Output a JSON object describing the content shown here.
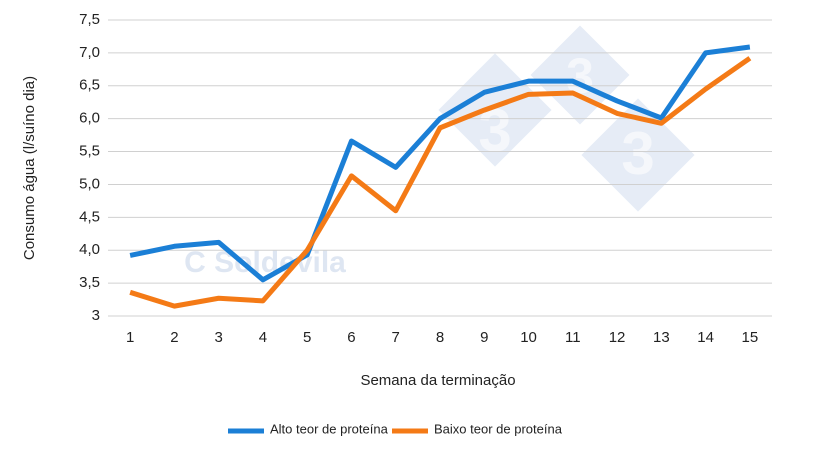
{
  "chart_data": {
    "type": "line",
    "x_label": "Semana da terminação",
    "y_label": "Consumo água (l/suíno dia)",
    "watermark": "C Soldevila",
    "logo_text": "3",
    "categories": [
      "1",
      "2",
      "3",
      "4",
      "5",
      "6",
      "7",
      "8",
      "9",
      "10",
      "11",
      "12",
      "13",
      "14",
      "15"
    ],
    "series": [
      {
        "name": "Alto teor de proteína",
        "color": "#1b7fd6",
        "values": [
          3.92,
          4.06,
          4.12,
          3.55,
          3.93,
          5.66,
          5.26,
          6.0,
          6.4,
          6.57,
          6.57,
          6.27,
          6.01,
          7.0,
          7.09
        ]
      },
      {
        "name": "Baixo teor de proteína",
        "color": "#f47a16",
        "values": [
          3.36,
          3.15,
          3.27,
          3.23,
          4.0,
          5.13,
          4.6,
          5.86,
          6.13,
          6.37,
          6.39,
          6.08,
          5.93,
          6.45,
          6.92
        ]
      }
    ],
    "ylim": [
      3,
      7.5
    ],
    "yticks": [
      3,
      {
        "value": 3.5,
        "label": "3,5"
      },
      {
        "value": 4,
        "label": "4,0"
      },
      {
        "value": 4.5,
        "label": "4,5"
      },
      {
        "value": 5,
        "label": "5,0"
      },
      {
        "value": 5.5,
        "label": "5,5"
      },
      {
        "value": 6,
        "label": "6,0"
      },
      {
        "value": 6.5,
        "label": "6,5"
      },
      {
        "value": 7,
        "label": "7,0"
      },
      {
        "value": 7.5,
        "label": "7,5"
      }
    ],
    "grid": true,
    "legend": "bottom"
  }
}
